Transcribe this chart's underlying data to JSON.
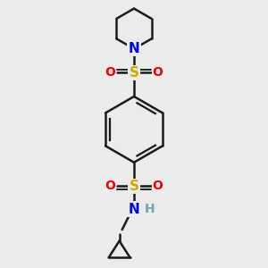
{
  "background_color": "#ebebeb",
  "atom_colors": {
    "C": "#1a1a1a",
    "N": "#0000ee",
    "S": "#ccaa00",
    "O": "#ee0000",
    "H": "#6fa8a8"
  },
  "bond_color": "#1a1a1a",
  "line_width": 1.8,
  "figsize": [
    3.0,
    3.0
  ],
  "dpi": 100
}
